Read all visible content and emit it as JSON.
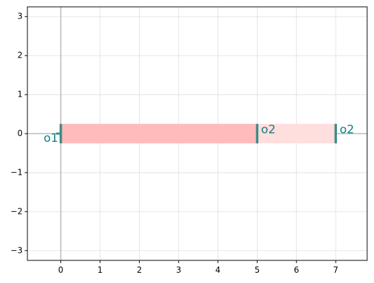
{
  "chart_data": {
    "type": "rect",
    "xlim": [
      -0.85,
      7.8
    ],
    "ylim": [
      -3.25,
      3.25
    ],
    "xticks": [
      0,
      1,
      2,
      3,
      4,
      5,
      6,
      7
    ],
    "yticks": [
      -3,
      -2,
      -1,
      0,
      1,
      2,
      3
    ],
    "xtick_labels": [
      "0",
      "1",
      "2",
      "3",
      "4",
      "5",
      "6",
      "7"
    ],
    "ytick_labels": [
      "−3",
      "−2",
      "−1",
      "0",
      "1",
      "2",
      "3"
    ],
    "grid": true,
    "rectangles": [
      {
        "x0": 0,
        "x1": 5,
        "y0": -0.25,
        "y1": 0.25,
        "color": "#ffbbbb"
      },
      {
        "x0": 5,
        "x1": 7,
        "y0": -0.25,
        "y1": 0.25,
        "color": "#ffdede"
      }
    ],
    "ports": [
      {
        "x": 0,
        "y": 0,
        "label": "o1",
        "label_dx": -0.25,
        "label_dy": -0.12
      },
      {
        "x": 5,
        "y": 0,
        "label": "o2",
        "label_dx": 0.1,
        "label_dy": 0.1
      },
      {
        "x": 7,
        "y": 0,
        "label": "o2",
        "label_dx": 0.1,
        "label_dy": 0.1
      }
    ],
    "port_half_width": 0.25,
    "colors": {
      "port": "#3d8a86",
      "label": "#0f7d80",
      "axis_line": "#aaaaaa",
      "grid": "#dddddd"
    }
  }
}
